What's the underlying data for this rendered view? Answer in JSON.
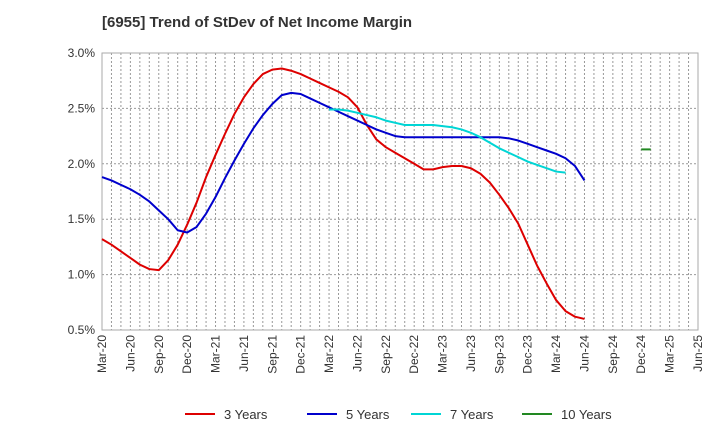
{
  "title": "[6955]  Trend of StDev of Net Income Margin",
  "chart_data": {
    "type": "line",
    "title": "[6955]  Trend of StDev of Net Income Margin",
    "xlabel": "",
    "ylabel": "",
    "ylim": [
      0.5,
      3.0
    ],
    "y_ticks": [
      "0.5%",
      "1.0%",
      "1.5%",
      "2.0%",
      "2.5%",
      "3.0%"
    ],
    "y_tick_values": [
      0.5,
      1.0,
      1.5,
      2.0,
      2.5,
      3.0
    ],
    "x_ticks": [
      "Mar-20",
      "Jun-20",
      "Sep-20",
      "Dec-20",
      "Mar-21",
      "Jun-21",
      "Sep-21",
      "Dec-21",
      "Mar-22",
      "Jun-22",
      "Sep-22",
      "Dec-22",
      "Mar-23",
      "Jun-23",
      "Sep-23",
      "Dec-23",
      "Mar-24",
      "Jun-24",
      "Sep-24",
      "Dec-24",
      "Mar-25",
      "Jun-25"
    ],
    "grid": true,
    "legend_position": "bottom",
    "series": [
      {
        "name": "3 Years",
        "color": "#dd0000",
        "values": [
          1.32,
          1.27,
          1.21,
          1.15,
          1.09,
          1.05,
          1.04,
          1.13,
          1.27,
          1.45,
          1.65,
          1.88,
          2.08,
          2.27,
          2.45,
          2.6,
          2.72,
          2.81,
          2.85,
          2.86,
          2.84,
          2.81,
          2.77,
          2.73,
          2.69,
          2.65,
          2.6,
          2.51,
          2.35,
          2.22,
          2.15,
          2.1,
          2.05,
          2.0,
          1.95,
          1.95,
          1.97,
          1.98,
          1.98,
          1.96,
          1.91,
          1.83,
          1.72,
          1.6,
          1.46,
          1.27,
          1.08,
          0.92,
          0.77,
          0.67,
          0.62,
          0.6
        ]
      },
      {
        "name": "5 Years",
        "color": "#0000cc",
        "values": [
          1.88,
          1.85,
          1.81,
          1.77,
          1.72,
          1.66,
          1.58,
          1.5,
          1.4,
          1.38,
          1.43,
          1.55,
          1.7,
          1.87,
          2.03,
          2.18,
          2.32,
          2.44,
          2.54,
          2.62,
          2.64,
          2.63,
          2.59,
          2.55,
          2.51,
          2.47,
          2.43,
          2.39,
          2.35,
          2.31,
          2.28,
          2.25,
          2.24,
          2.24,
          2.24,
          2.24,
          2.24,
          2.24,
          2.24,
          2.24,
          2.24,
          2.24,
          2.24,
          2.23,
          2.21,
          2.18,
          2.15,
          2.12,
          2.09,
          2.05,
          1.98,
          1.85
        ]
      },
      {
        "name": "7 Years",
        "color": "#00d5d5",
        "x_start": "Mar-22",
        "values": [
          2.49,
          2.49,
          2.48,
          2.46,
          2.44,
          2.42,
          2.39,
          2.37,
          2.35,
          2.35,
          2.35,
          2.35,
          2.34,
          2.33,
          2.31,
          2.28,
          2.24,
          2.19,
          2.14,
          2.1,
          2.06,
          2.02,
          1.99,
          1.96,
          1.93,
          1.92
        ]
      },
      {
        "name": "10 Years",
        "color": "#228822",
        "x_start": "Dec-24",
        "values": [
          2.13,
          2.13
        ]
      }
    ]
  }
}
